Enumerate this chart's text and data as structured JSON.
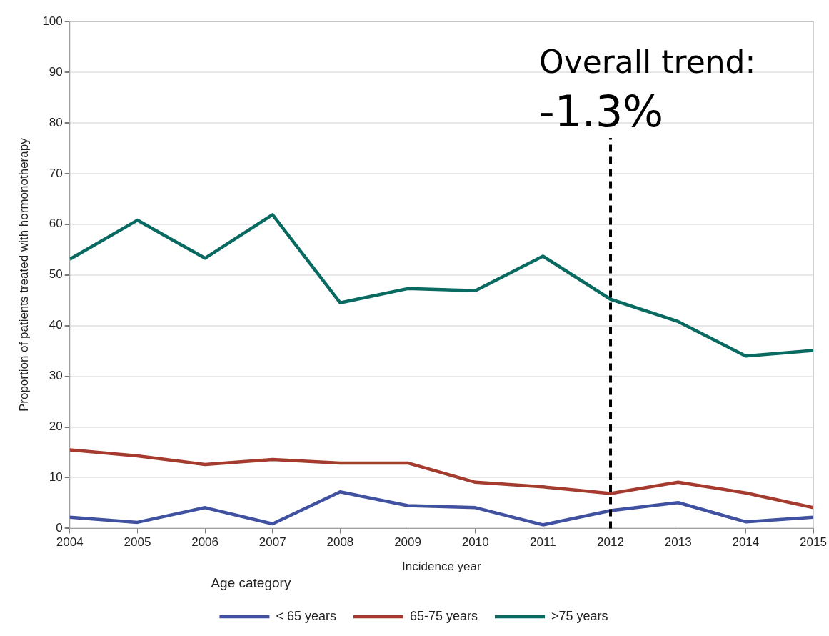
{
  "chart_data": {
    "type": "line",
    "xlabel": "Incidence year",
    "ylabel": "Proportion of patients treated with hormonotherapy",
    "legend_title": "Age category",
    "legend": "bottom",
    "grid": "y",
    "marker": "none",
    "line_style": "solid",
    "x": [
      2004,
      2005,
      2006,
      2007,
      2008,
      2009,
      2010,
      2011,
      2012,
      2013,
      2014,
      2015
    ],
    "xlim": [
      2004,
      2015
    ],
    "xticks": [
      2004,
      2005,
      2006,
      2007,
      2008,
      2009,
      2010,
      2011,
      2012,
      2013,
      2014,
      2015
    ],
    "ylim": [
      0,
      100
    ],
    "yticks": [
      0,
      10,
      20,
      30,
      40,
      50,
      60,
      70,
      80,
      90,
      100
    ],
    "series": [
      {
        "name": "< 65 years",
        "color": "#3f51a0",
        "values": [
          2.2,
          1.2,
          4.1,
          0.9,
          7.2,
          4.5,
          4.1,
          0.7,
          3.5,
          5.1,
          1.3,
          2.2
        ]
      },
      {
        "name": "65-75 years",
        "color": "#a53a2e",
        "values": [
          15.5,
          14.3,
          12.6,
          13.6,
          12.9,
          12.9,
          9.1,
          8.2,
          6.9,
          9.1,
          7.0,
          4.1
        ]
      },
      {
        "name": ">75 years",
        "color": "#086a60",
        "values": [
          53.1,
          60.8,
          53.3,
          61.9,
          44.5,
          47.3,
          46.9,
          53.7,
          45.2,
          40.8,
          34.0,
          35.1
        ]
      }
    ],
    "ref_lines": [
      {
        "axis": "x",
        "value": 2012,
        "color": "#000000",
        "line_style": "dashed"
      }
    ],
    "annotations": [
      "Overall trend:",
      "-1.3%"
    ]
  }
}
